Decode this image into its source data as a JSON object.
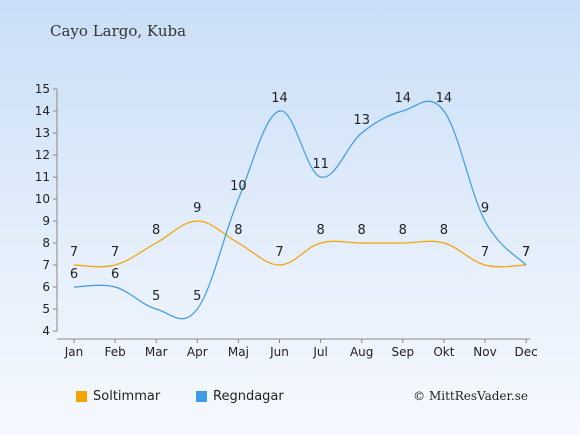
{
  "title": "Cayo Largo, Kuba",
  "credit": "© MittResVader.se",
  "chart_data": {
    "type": "line",
    "categories": [
      "Jan",
      "Feb",
      "Mar",
      "Apr",
      "Maj",
      "Jun",
      "Jul",
      "Aug",
      "Sep",
      "Okt",
      "Nov",
      "Dec"
    ],
    "ylim": [
      4,
      15
    ],
    "yticks": [
      4,
      5,
      6,
      7,
      8,
      9,
      10,
      11,
      12,
      13,
      14,
      15
    ],
    "grid": false,
    "legend_position": "bottom-left",
    "series": [
      {
        "name": "Soltimmar",
        "color": "#f5a100",
        "values": [
          7,
          7,
          8,
          9,
          8,
          7,
          8,
          8,
          8,
          8,
          7,
          7
        ]
      },
      {
        "name": "Regndagar",
        "color": "#3f9be6",
        "values": [
          6,
          6,
          5,
          5,
          10,
          14,
          11,
          13,
          14,
          14,
          9,
          7
        ]
      }
    ]
  }
}
